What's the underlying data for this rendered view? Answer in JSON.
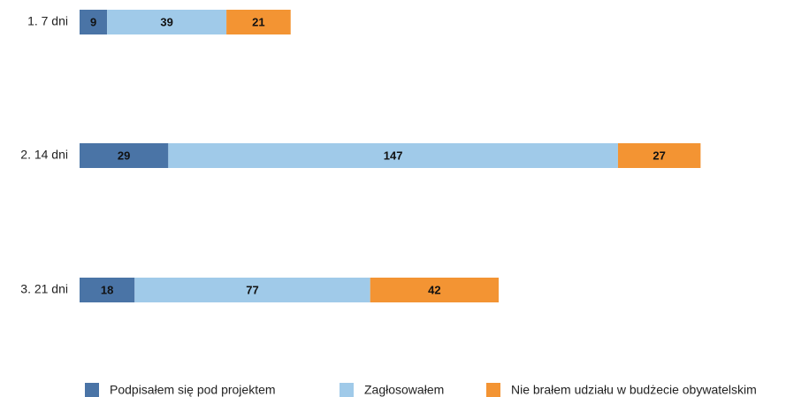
{
  "chart_data": {
    "type": "stacked-bar-horizontal",
    "categories": [
      "1. 7 dni",
      "2. 14 dni",
      "3. 21 dni"
    ],
    "series": [
      {
        "name": "Podpisałem się pod projektem",
        "color": "#4a74a6",
        "values": [
          9,
          29,
          18
        ]
      },
      {
        "name": "Zagłosowałem",
        "color": "#a0cae9",
        "values": [
          39,
          147,
          77
        ]
      },
      {
        "name": "Nie brałem udziału w budżecie obywatelskim",
        "color": "#f39433",
        "values": [
          21,
          27,
          42
        ]
      }
    ],
    "legend": "bottom"
  }
}
